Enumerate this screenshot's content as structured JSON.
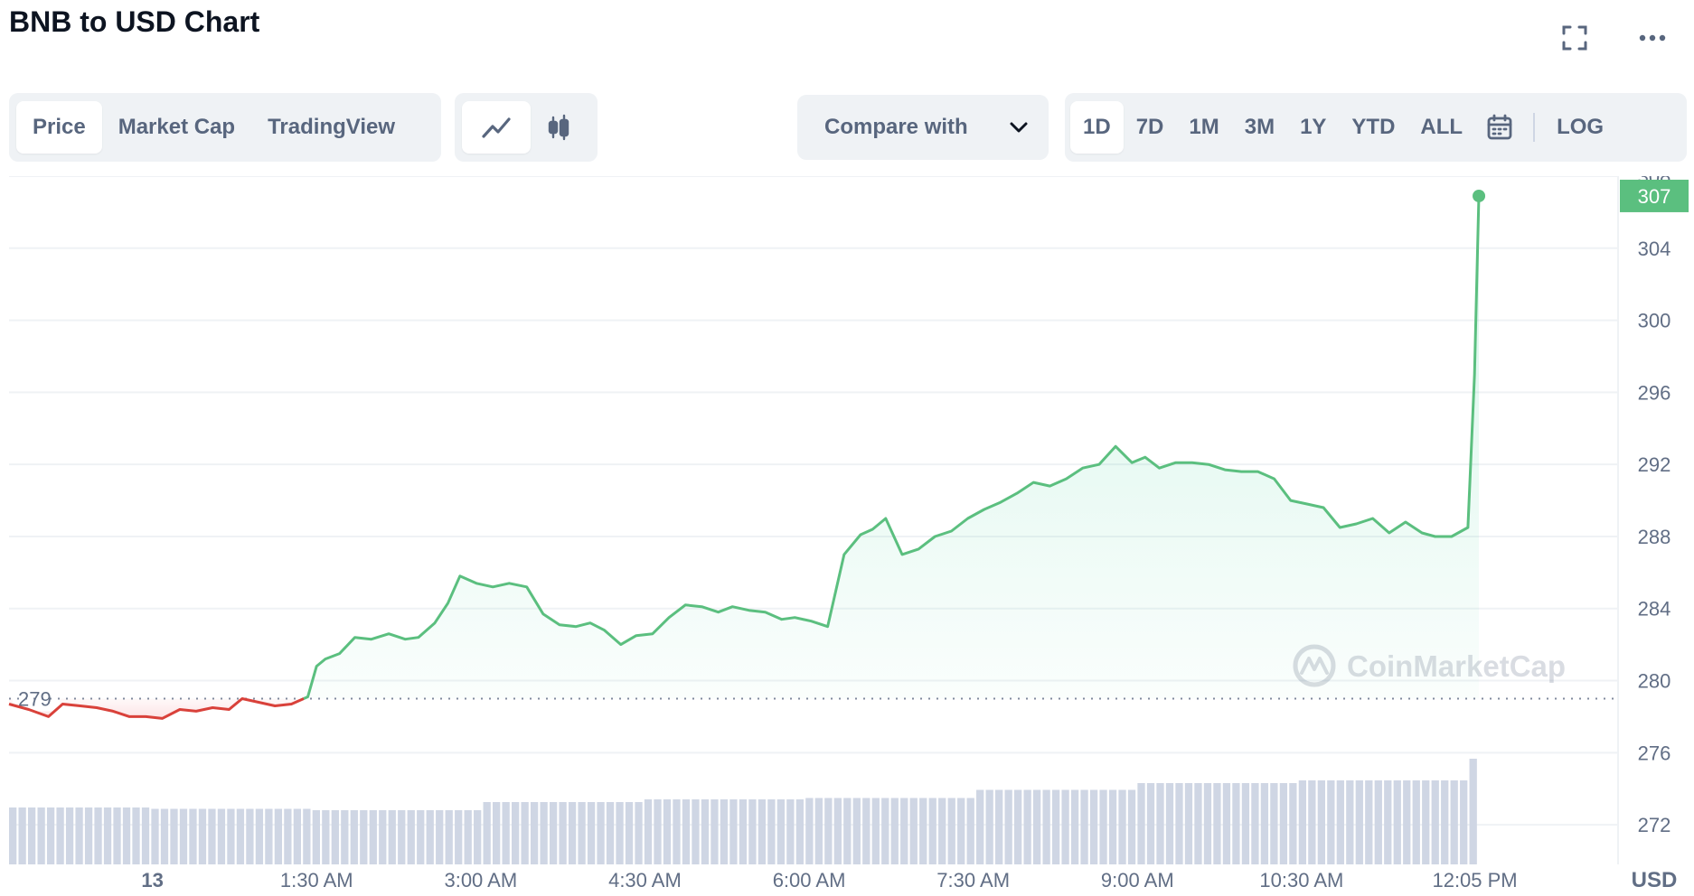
{
  "header": {
    "title": "BNB to USD Chart"
  },
  "icons": {
    "fullscreen": "fullscreen-icon",
    "more": "more-icon",
    "line_chart": "line-chart-icon",
    "candlestick": "candlestick-icon",
    "calendar": "calendar-icon",
    "chevron": "chevron-down-icon"
  },
  "tabs": [
    {
      "label": "Price",
      "active": true
    },
    {
      "label": "Market Cap",
      "active": false
    },
    {
      "label": "TradingView",
      "active": false
    }
  ],
  "compare": {
    "label": "Compare with"
  },
  "ranges": [
    {
      "label": "1D",
      "active": true
    },
    {
      "label": "7D",
      "active": false
    },
    {
      "label": "1M",
      "active": false
    },
    {
      "label": "3M",
      "active": false
    },
    {
      "label": "1Y",
      "active": false
    },
    {
      "label": "YTD",
      "active": false
    },
    {
      "label": "ALL",
      "active": false
    }
  ],
  "log_label": "LOG",
  "colors": {
    "up": "#16c784",
    "up_line": "#5bbf7f",
    "down_line": "#d9413a",
    "volume": "#cfd6e4",
    "grid": "#eff2f5",
    "accent_badge": "#5bbf7f"
  },
  "chart_data": {
    "type": "line",
    "currency_label": "USD",
    "watermark": "CoinMarketCap",
    "reference_price": 279,
    "reference_label": "279",
    "current_price_label": "307",
    "y_ticks": [
      "272",
      "276",
      "280",
      "284",
      "288",
      "292",
      "296",
      "300",
      "304",
      "308"
    ],
    "x_tick_labels": [
      "13",
      "1:30 AM",
      "3:00 AM",
      "4:30 AM",
      "6:00 AM",
      "7:30 AM",
      "9:00 AM",
      "10:30 AM",
      "12:05 PM"
    ],
    "x_tick_hours": [
      0,
      1.5,
      3,
      4.5,
      6,
      7.5,
      9,
      10.5,
      12.083
    ],
    "x_domain_hours": [
      -1.31,
      12.83
    ],
    "ylim": [
      269.8,
      308
    ],
    "price_x_hours": [
      -1.31,
      -1.13,
      -0.95,
      -0.82,
      -0.66,
      -0.51,
      -0.36,
      -0.21,
      -0.06,
      0.09,
      0.25,
      0.4,
      0.55,
      0.7,
      0.82,
      0.97,
      1.12,
      1.27,
      1.42,
      1.5,
      1.58,
      1.71,
      1.85,
      2.0,
      2.16,
      2.31,
      2.43,
      2.58,
      2.7,
      2.81,
      2.96,
      3.11,
      3.26,
      3.42,
      3.57,
      3.72,
      3.87,
      4.0,
      4.13,
      4.28,
      4.42,
      4.57,
      4.72,
      4.87,
      5.02,
      5.17,
      5.3,
      5.45,
      5.6,
      5.75,
      5.87,
      6.02,
      6.17,
      6.32,
      6.47,
      6.58,
      6.7,
      6.85,
      7.0,
      7.15,
      7.3,
      7.45,
      7.6,
      7.75,
      7.9,
      8.05,
      8.2,
      8.35,
      8.5,
      8.65,
      8.8,
      8.95,
      9.07,
      9.2,
      9.35,
      9.5,
      9.65,
      9.8,
      9.95,
      10.1,
      10.25,
      10.4,
      10.55,
      10.7,
      10.85,
      11.0,
      11.15,
      11.3,
      11.45,
      11.6,
      11.72,
      11.87,
      12.02,
      12.08,
      12.12
    ],
    "price_values": [
      278.7,
      278.4,
      278.0,
      278.7,
      278.6,
      278.5,
      278.3,
      278.0,
      278.0,
      277.9,
      278.4,
      278.3,
      278.5,
      278.4,
      279.0,
      278.8,
      278.6,
      278.7,
      279.1,
      280.8,
      281.2,
      281.5,
      282.4,
      282.3,
      282.6,
      282.3,
      282.4,
      283.2,
      284.3,
      285.8,
      285.4,
      285.2,
      285.4,
      285.2,
      283.7,
      283.1,
      283.0,
      283.2,
      282.8,
      282.0,
      282.5,
      282.6,
      283.5,
      284.2,
      284.1,
      283.8,
      284.1,
      283.9,
      283.8,
      283.4,
      283.5,
      283.3,
      283.0,
      287.0,
      288.1,
      288.4,
      289.0,
      287.0,
      287.3,
      288.0,
      288.3,
      289.0,
      289.5,
      289.9,
      290.4,
      291.0,
      290.8,
      291.2,
      291.8,
      292.0,
      293.0,
      292.1,
      292.4,
      291.8,
      292.1,
      292.1,
      292.0,
      291.7,
      291.6,
      291.6,
      291.2,
      290.0,
      289.8,
      289.6,
      288.5,
      288.7,
      289.0,
      288.2,
      288.8,
      288.2,
      288.0,
      288.0,
      288.5,
      297.0,
      306.9
    ],
    "volume_x_hours": [
      -1.31,
      0.0,
      1.5,
      3.0,
      4.5,
      6.0,
      7.5,
      9.0,
      10.5,
      12.0,
      12.08
    ],
    "volume_values": [
      0.42,
      0.41,
      0.4,
      0.46,
      0.48,
      0.49,
      0.55,
      0.6,
      0.62,
      0.64,
      0.78
    ],
    "volume_bar_count": 155
  }
}
